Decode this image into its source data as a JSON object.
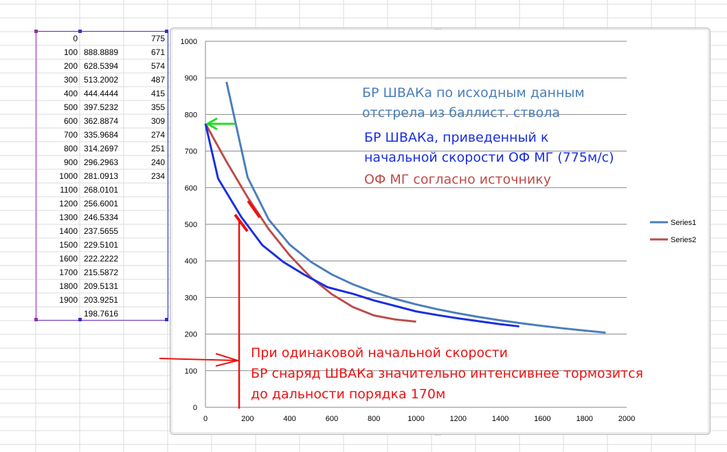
{
  "colors": {
    "series1": "#4a7ebb",
    "series2": "#be4b48",
    "blue_annotation": "#1a2ee0",
    "red_annotation": "#ee1111",
    "green_arrow": "#22dd22",
    "gridline": "#868686",
    "axis": "#868686"
  },
  "sheet": {
    "rows": [
      {
        "a": "0",
        "b": "",
        "c": "775"
      },
      {
        "a": "100",
        "b": "888.8889",
        "c": "671"
      },
      {
        "a": "200",
        "b": "628.5394",
        "c": "574"
      },
      {
        "a": "300",
        "b": "513.2002",
        "c": "487"
      },
      {
        "a": "400",
        "b": "444.4444",
        "c": "415"
      },
      {
        "a": "500",
        "b": "397.5232",
        "c": "355"
      },
      {
        "a": "600",
        "b": "362.8874",
        "c": "309"
      },
      {
        "a": "700",
        "b": "335.9684",
        "c": "274"
      },
      {
        "a": "800",
        "b": "314.2697",
        "c": "251"
      },
      {
        "a": "900",
        "b": "296.2963",
        "c": "240"
      },
      {
        "a": "1000",
        "b": "281.0913",
        "c": "234"
      },
      {
        "a": "1100",
        "b": "268.0101",
        "c": ""
      },
      {
        "a": "1200",
        "b": "256.6001",
        "c": ""
      },
      {
        "a": "1300",
        "b": "246.5334",
        "c": ""
      },
      {
        "a": "1400",
        "b": "237.5655",
        "c": ""
      },
      {
        "a": "1500",
        "b": "229.5101",
        "c": ""
      },
      {
        "a": "1600",
        "b": "222.2222",
        "c": ""
      },
      {
        "a": "1700",
        "b": "215.5872",
        "c": ""
      },
      {
        "a": "1800",
        "b": "209.5131",
        "c": ""
      },
      {
        "a": "1900",
        "b": "203.9251",
        "c": ""
      },
      {
        "a": "",
        "b": "198.7616",
        "c": ""
      }
    ]
  },
  "chart_data": {
    "type": "line",
    "xlim": [
      0,
      2000
    ],
    "ylim": [
      0,
      1000
    ],
    "x_ticks": [
      "0",
      "200",
      "400",
      "600",
      "800",
      "1000",
      "1200",
      "1400",
      "1600",
      "1800",
      "2000"
    ],
    "y_ticks": [
      "0",
      "100",
      "200",
      "300",
      "400",
      "500",
      "600",
      "700",
      "800",
      "900",
      "1000"
    ],
    "grid": "horizontal",
    "legend_position": "right",
    "series": [
      {
        "name": "Series1",
        "x": [
          100,
          200,
          300,
          400,
          500,
          600,
          700,
          800,
          900,
          1000,
          1100,
          1200,
          1300,
          1400,
          1500,
          1600,
          1700,
          1800,
          1900
        ],
        "y": [
          888.8889,
          628.5394,
          513.2002,
          444.4444,
          397.5232,
          362.8874,
          335.9684,
          314.2697,
          296.2963,
          281.0913,
          268.0101,
          256.6001,
          246.5334,
          237.5655,
          229.5101,
          222.2222,
          215.5872,
          209.5131,
          203.9251
        ]
      },
      {
        "name": "Series2",
        "x": [
          0,
          100,
          200,
          300,
          400,
          500,
          600,
          700,
          800,
          900,
          1000
        ],
        "y": [
          775,
          671,
          574,
          487,
          415,
          355,
          309,
          274,
          251,
          240,
          234
        ]
      }
    ],
    "overlay_line": {
      "x": [
        0,
        60,
        170,
        270,
        370,
        470,
        580,
        700,
        800,
        900,
        1000,
        1100,
        1200,
        1300,
        1400,
        1490
      ],
      "y": [
        775,
        625,
        520,
        443,
        397,
        362,
        328,
        310,
        292,
        277,
        262,
        252,
        243,
        235,
        227,
        221
      ]
    },
    "annotations": {
      "source_label_line1": "БР ШВАКа по исходным данным",
      "source_label_line2": "отстрела из баллист. ствола",
      "reduced_label_line1": "БР ШВАКа, приведенный к",
      "reduced_label_line2": "начальной скорости ОФ МГ (775м/с)",
      "ofmg_label": "ОФ МГ согласно источнику",
      "note_line1": "При одинаковой начальной скорости",
      "note_line2": "БР снаряд ШВАКа значительно интенсивнее тормозится",
      "note_line3": "до дальности порядка 170м"
    }
  }
}
